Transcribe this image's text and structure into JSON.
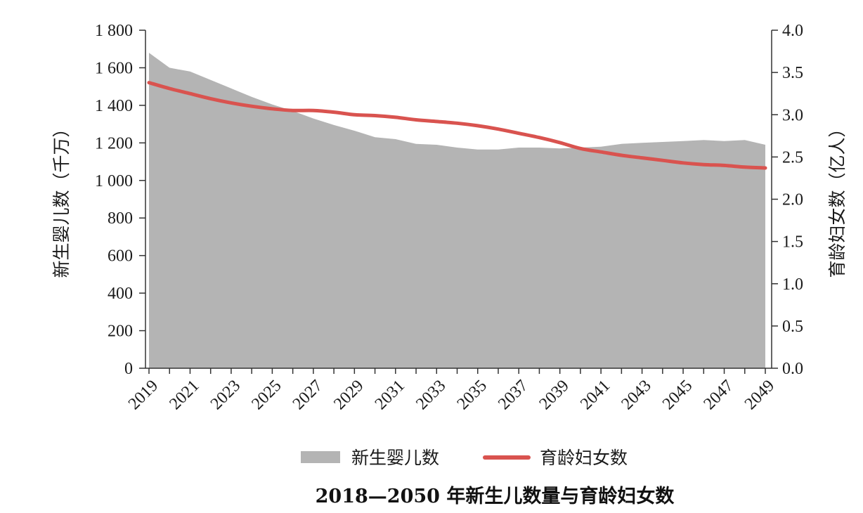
{
  "chart_data": {
    "type": "area",
    "title": "2018—2050 年新生儿数量与育龄妇女数",
    "xlabel": "",
    "ylabel": "新生婴儿数（千万）",
    "y2label": "育龄妇女数（亿人）",
    "ylim": [
      0,
      1800
    ],
    "y2lim": [
      0,
      4.0
    ],
    "yticks": [
      "0",
      "200",
      "400",
      "600",
      "800",
      "1 000",
      "1 200",
      "1 400",
      "1 600",
      "1 800"
    ],
    "y2ticks": [
      "0.0",
      "0.5",
      "1.0",
      "1.5",
      "2.0",
      "2.5",
      "3.0",
      "3.5",
      "4.0"
    ],
    "xticks": [
      "2019",
      "2021",
      "2023",
      "2025",
      "2027",
      "2029",
      "2031",
      "2033",
      "2035",
      "2037",
      "2039",
      "2041",
      "2043",
      "2045",
      "2047",
      "2049"
    ],
    "x": [
      2019,
      2020,
      2021,
      2022,
      2023,
      2024,
      2025,
      2026,
      2027,
      2028,
      2029,
      2030,
      2031,
      2032,
      2033,
      2034,
      2035,
      2036,
      2037,
      2038,
      2039,
      2040,
      2041,
      2042,
      2043,
      2044,
      2045,
      2046,
      2047,
      2048,
      2049
    ],
    "series": [
      {
        "name": "新生婴儿数",
        "type": "area",
        "axis": "left",
        "color": "#b4b4b4",
        "values": [
          1680,
          1600,
          1580,
          1535,
          1490,
          1445,
          1405,
          1370,
          1330,
          1295,
          1265,
          1230,
          1220,
          1195,
          1190,
          1175,
          1165,
          1165,
          1175,
          1175,
          1170,
          1175,
          1180,
          1195,
          1200,
          1205,
          1210,
          1215,
          1210,
          1215,
          1190
        ]
      },
      {
        "name": "育龄妇女数",
        "type": "line",
        "axis": "right",
        "color": "#d9534f",
        "values": [
          3.38,
          3.31,
          3.25,
          3.19,
          3.14,
          3.1,
          3.07,
          3.05,
          3.05,
          3.03,
          3.0,
          2.99,
          2.97,
          2.94,
          2.92,
          2.9,
          2.87,
          2.83,
          2.78,
          2.73,
          2.67,
          2.6,
          2.56,
          2.52,
          2.49,
          2.46,
          2.43,
          2.41,
          2.4,
          2.38,
          2.37
        ]
      }
    ],
    "legend": {
      "position": "bottom",
      "items": [
        {
          "label": "新生婴儿数",
          "symbol": "patch",
          "color": "#b4b4b4"
        },
        {
          "label": "育龄妇女数",
          "symbol": "line",
          "color": "#d9534f"
        }
      ]
    }
  }
}
